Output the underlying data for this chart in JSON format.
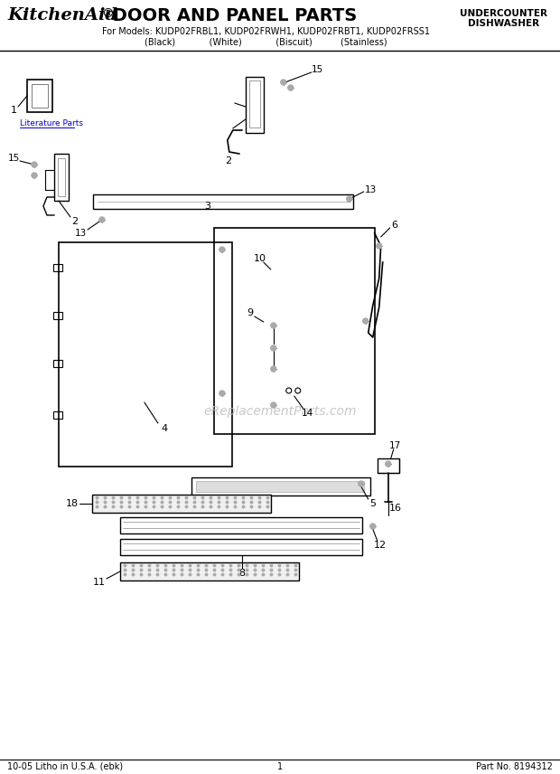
{
  "title_kitchenaid": "KitchenAid",
  "title_dot": "®",
  "title_main": " DOOR AND PANEL PARTS",
  "subtitle": "For Models: KUDP02FRBL1, KUDP02FRWH1, KUDP02FRBT1, KUDP02FRSS1",
  "subtitle2": "(Black)            (White)            (Biscuit)          (Stainless)",
  "top_right1": "UNDERCOUNTER",
  "top_right2": "DISHWASHER",
  "footer_left": "10-05 Litho in U.S.A. (ebk)",
  "footer_center": "1",
  "footer_right": "Part No. 8194312",
  "watermark": "eReplacementParts.com",
  "bg_color": "#ffffff",
  "line_color": "#000000",
  "lit_parts_label": "Literature Parts",
  "lit_parts_color": "#0000cc"
}
